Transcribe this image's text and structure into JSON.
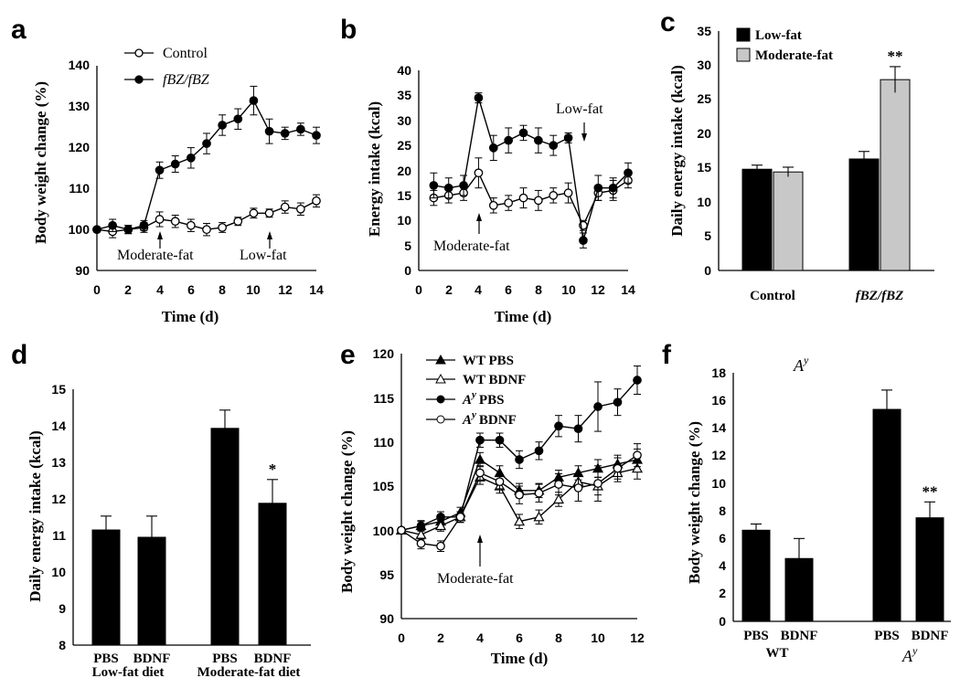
{
  "colors": {
    "dark": "#000000",
    "light": "#c8c8c8",
    "open": "#ffffff"
  },
  "chart_data": [
    {
      "panel": "a",
      "type": "line",
      "ylabel": "Body weight change (%)",
      "xlabel": "Time (d)",
      "xlim": [
        0,
        14
      ],
      "ylim": [
        90,
        140
      ],
      "xticks": [
        "0",
        "2",
        "4",
        "6",
        "8",
        "10",
        "12",
        "14"
      ],
      "yticks": [
        "90",
        "100",
        "110",
        "120",
        "130",
        "140"
      ],
      "series": [
        {
          "name": "Control",
          "marker": "open-circle",
          "x": [
            0,
            1,
            2,
            3,
            4,
            5,
            6,
            7,
            8,
            9,
            10,
            11,
            12,
            13,
            14
          ],
          "y": [
            100,
            99.5,
            100,
            100.5,
            102.5,
            102,
            101,
            100,
            100.5,
            102,
            104,
            104,
            105.5,
            105,
            107
          ],
          "err": [
            0.5,
            1.5,
            1,
            1.2,
            1.8,
            1.5,
            1.5,
            1.5,
            1.2,
            1,
            1.2,
            1,
            1.5,
            1.5,
            1.5
          ]
        },
        {
          "name": "fBZ/fBZ",
          "marker": "filled-circle",
          "x": [
            0,
            1,
            2,
            3,
            4,
            5,
            6,
            7,
            8,
            9,
            10,
            11,
            12,
            13,
            14
          ],
          "y": [
            100,
            101,
            100,
            101,
            114.5,
            116,
            117.5,
            121,
            125.5,
            127,
            131.5,
            124,
            123.5,
            124.5,
            123
          ],
          "err": [
            0.5,
            1.5,
            1,
            1.2,
            2,
            2,
            2.5,
            2.5,
            2.5,
            2.5,
            3.5,
            3,
            1.5,
            1.5,
            2
          ]
        }
      ],
      "annotations": [
        "Moderate-fat",
        "Low-fat"
      ]
    },
    {
      "panel": "b",
      "type": "line",
      "ylabel": "Energy intake (kcal)",
      "xlabel": "Time (d)",
      "xlim": [
        0,
        14
      ],
      "ylim": [
        0,
        40
      ],
      "xticks": [
        "0",
        "2",
        "4",
        "6",
        "8",
        "10",
        "12",
        "14"
      ],
      "yticks": [
        "0",
        "5",
        "10",
        "15",
        "20",
        "25",
        "30",
        "35",
        "40"
      ],
      "series": [
        {
          "name": "Control",
          "marker": "open-circle",
          "x": [
            1,
            2,
            3,
            4,
            5,
            6,
            7,
            8,
            9,
            10,
            11,
            12,
            13,
            14
          ],
          "y": [
            14.5,
            15,
            15.5,
            19.5,
            13,
            13.5,
            14.5,
            14,
            15,
            15.5,
            9,
            15.5,
            16,
            18
          ],
          "err": [
            1.5,
            1.5,
            1.5,
            3,
            1.5,
            1.5,
            2,
            2,
            1.5,
            2,
            1,
            1.5,
            2,
            1.5
          ]
        },
        {
          "name": "fBZ/fBZ",
          "marker": "filled-circle",
          "x": [
            1,
            2,
            3,
            4,
            5,
            6,
            7,
            8,
            9,
            10,
            11,
            12,
            13,
            14
          ],
          "y": [
            17,
            16.5,
            17,
            34.5,
            24.5,
            26,
            27.5,
            26,
            25,
            26.5,
            6,
            16.5,
            16.5,
            19.5
          ],
          "err": [
            2.5,
            2,
            2,
            1,
            2.5,
            2.5,
            1.5,
            2.5,
            2,
            1,
            1.5,
            2.5,
            2,
            2
          ]
        }
      ],
      "annotations": [
        "Low-fat",
        "Moderate-fat"
      ]
    },
    {
      "panel": "c",
      "type": "bar",
      "ylabel": "Daily energy intake (kcal)",
      "ylim": [
        0,
        35
      ],
      "yticks": [
        "0",
        "5",
        "10",
        "15",
        "20",
        "25",
        "30",
        "35"
      ],
      "categories": [
        "Control",
        "fBZ/fBZ"
      ],
      "series": [
        {
          "name": "Low-fat",
          "values": [
            14.8,
            16.3
          ],
          "err": [
            0.6,
            1.1
          ]
        },
        {
          "name": "Moderate-fat",
          "values": [
            14.4,
            27.9
          ],
          "err": [
            0.7,
            1.9
          ]
        }
      ],
      "significance": [
        "",
        "**"
      ]
    },
    {
      "panel": "d",
      "type": "bar",
      "ylabel": "Daily energy intake (kcal)",
      "ylim": [
        8,
        15
      ],
      "yticks": [
        "8",
        "9",
        "10",
        "11",
        "12",
        "13",
        "14",
        "15"
      ],
      "bars": [
        {
          "label": "PBS",
          "value": 11.15,
          "err": 0.38,
          "sig": ""
        },
        {
          "label": "BDNF",
          "value": 10.95,
          "err": 0.58,
          "sig": ""
        },
        {
          "label": "PBS",
          "value": 13.93,
          "err": 0.5,
          "sig": ""
        },
        {
          "label": "BDNF",
          "value": 11.88,
          "err": 0.65,
          "sig": "*"
        }
      ],
      "groups": [
        "Low-fat diet",
        "Moderate-fat diet"
      ]
    },
    {
      "panel": "e",
      "type": "line",
      "ylabel": "Body weight change (%)",
      "xlabel": "Time (d)",
      "xlim": [
        0,
        12
      ],
      "ylim": [
        90,
        120
      ],
      "xticks": [
        "0",
        "2",
        "4",
        "6",
        "8",
        "10",
        "12"
      ],
      "yticks": [
        "90",
        "95",
        "100",
        "105",
        "110",
        "115",
        "120"
      ],
      "series": [
        {
          "name": "WT PBS",
          "marker": "filled-triangle",
          "x": [
            0,
            1,
            2,
            3,
            4,
            5,
            6,
            7,
            8,
            9,
            10,
            11,
            12
          ],
          "y": [
            100,
            100.5,
            101,
            102,
            108,
            106.5,
            104.5,
            104.5,
            106,
            106.5,
            107,
            107.5,
            108
          ],
          "err": [
            0.3,
            0.5,
            0.6,
            0.6,
            0.8,
            0.8,
            0.8,
            0.8,
            0.8,
            0.8,
            1,
            1,
            1.2
          ]
        },
        {
          "name": "WT BDNF",
          "marker": "open-triangle",
          "x": [
            0,
            1,
            2,
            3,
            4,
            5,
            6,
            7,
            8,
            9,
            10,
            11,
            12
          ],
          "y": [
            100,
            99.5,
            100.5,
            101.5,
            106,
            105,
            101,
            101.5,
            103.5,
            105.5,
            105,
            106.5,
            107
          ],
          "err": [
            0.3,
            0.5,
            0.6,
            0.6,
            0.8,
            0.8,
            0.8,
            0.8,
            0.8,
            0.8,
            1,
            1,
            1.2
          ]
        },
        {
          "name": "PBS",
          "prefix": "A",
          "sup": "y",
          "marker": "filled-circle",
          "x": [
            0,
            1,
            2,
            3,
            4,
            5,
            6,
            7,
            8,
            9,
            10,
            11,
            12
          ],
          "y": [
            100,
            100.5,
            101.5,
            101.5,
            110.2,
            110.2,
            108,
            109,
            111.8,
            111.5,
            114,
            114.5,
            117
          ],
          "err": [
            0.3,
            0.6,
            0.6,
            0.6,
            0.8,
            0.8,
            1,
            1,
            1.2,
            1.5,
            2.8,
            1.5,
            1.6
          ]
        },
        {
          "name": "BDNF",
          "prefix": "A",
          "sup": "y",
          "marker": "open-circle",
          "x": [
            0,
            1,
            2,
            3,
            4,
            5,
            6,
            7,
            8,
            9,
            10,
            11,
            12
          ],
          "y": [
            100,
            98.5,
            98.2,
            101.5,
            106.5,
            105.5,
            104,
            104.2,
            105.2,
            104.8,
            105.3,
            107,
            108.5
          ],
          "err": [
            0.3,
            0.6,
            0.6,
            0.6,
            0.8,
            0.8,
            1,
            1,
            1.2,
            1.5,
            2,
            1.2,
            1.3
          ]
        }
      ],
      "annotations": [
        "Moderate-fat"
      ]
    },
    {
      "panel": "f",
      "type": "bar",
      "ylabel": "Body weight change (%)",
      "ylim": [
        0,
        18
      ],
      "yticks": [
        "0",
        "2",
        "4",
        "6",
        "8",
        "10",
        "12",
        "14",
        "16",
        "18"
      ],
      "title_prefix": "A",
      "title_sup": "y",
      "bars": [
        {
          "label": "PBS",
          "value": 6.6,
          "err": 0.45,
          "sig": ""
        },
        {
          "label": "BDNF",
          "value": 4.55,
          "err": 1.45,
          "sig": ""
        },
        {
          "label": "PBS",
          "value": 15.35,
          "err": 1.4,
          "sig": ""
        },
        {
          "label": "BDNF",
          "value": 7.5,
          "err": 1.15,
          "sig": "**"
        }
      ],
      "groups": [
        "WT",
        ""
      ],
      "group2_prefix": "A",
      "group2_sup": "y"
    }
  ]
}
